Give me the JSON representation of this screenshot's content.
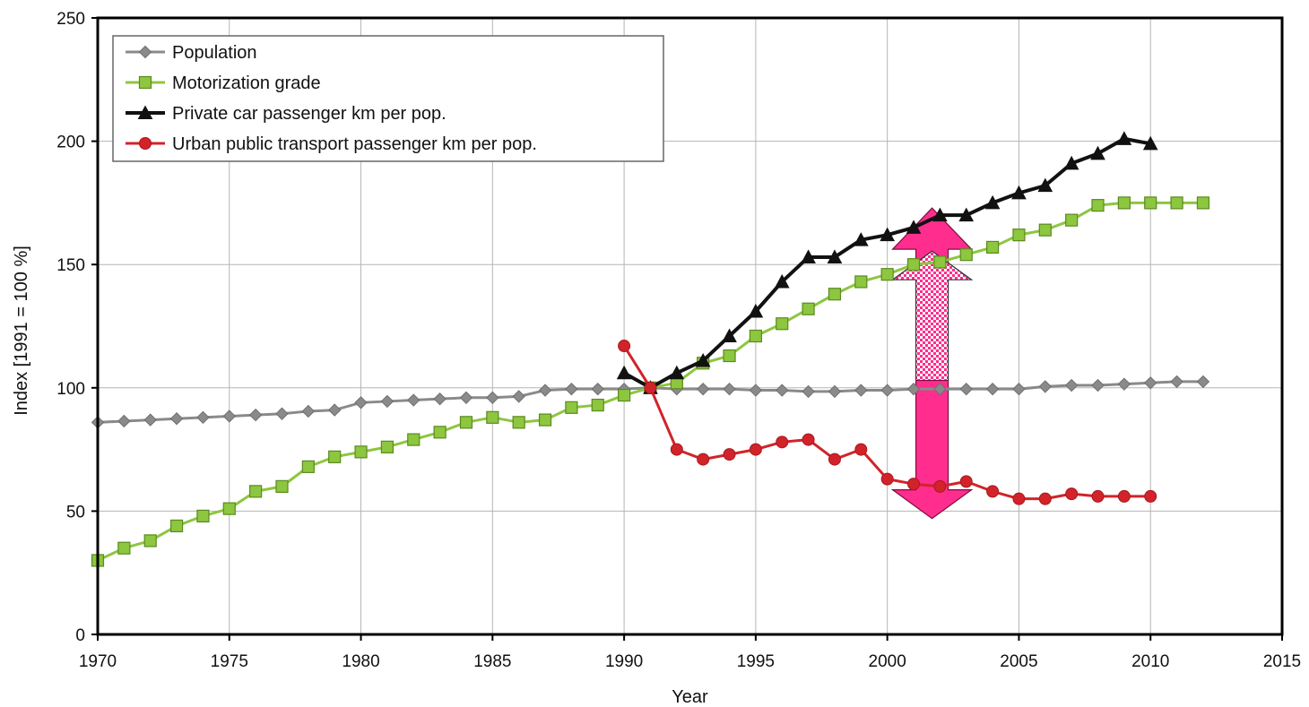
{
  "chart_data": {
    "type": "line",
    "xlabel": "Year",
    "ylabel": "Index [1991 = 100 %]",
    "xlim": [
      1970,
      2015
    ],
    "ylim": [
      0,
      250
    ],
    "x_ticks": [
      1970,
      1975,
      1980,
      1985,
      1990,
      1995,
      2000,
      2005,
      2010,
      2015
    ],
    "y_ticks": [
      0,
      50,
      100,
      150,
      200,
      250
    ],
    "grid": true,
    "legend_position": "top-left",
    "series": [
      {
        "name": "Population",
        "color": "#8a8a8a",
        "marker": "diamond",
        "x": [
          1970,
          1971,
          1972,
          1973,
          1974,
          1975,
          1976,
          1977,
          1978,
          1979,
          1980,
          1981,
          1982,
          1983,
          1984,
          1985,
          1986,
          1987,
          1988,
          1989,
          1990,
          1991,
          1992,
          1993,
          1994,
          1995,
          1996,
          1997,
          1998,
          1999,
          2000,
          2001,
          2002,
          2003,
          2004,
          2005,
          2006,
          2007,
          2008,
          2009,
          2010,
          2011,
          2012
        ],
        "values": [
          86,
          86.5,
          87,
          87.5,
          88,
          88.5,
          89,
          89.5,
          90.5,
          91,
          94,
          94.5,
          95,
          95.5,
          96,
          96,
          96.5,
          99,
          99.5,
          99.5,
          99.5,
          100,
          99.5,
          99.5,
          99.5,
          99,
          99,
          98.5,
          98.5,
          99,
          99,
          99.5,
          99.5,
          99.5,
          99.5,
          99.5,
          100.5,
          101,
          101,
          101.5,
          102,
          102.5,
          102.5
        ]
      },
      {
        "name": "Motorization grade",
        "color": "#8dc63f",
        "marker": "square",
        "x": [
          1970,
          1971,
          1972,
          1973,
          1974,
          1975,
          1976,
          1977,
          1978,
          1979,
          1980,
          1981,
          1982,
          1983,
          1984,
          1985,
          1986,
          1987,
          1988,
          1989,
          1990,
          1991,
          1992,
          1993,
          1994,
          1995,
          1996,
          1997,
          1998,
          1999,
          2000,
          2001,
          2002,
          2003,
          2004,
          2005,
          2006,
          2007,
          2008,
          2009,
          2010,
          2011,
          2012
        ],
        "values": [
          30,
          35,
          38,
          44,
          48,
          51,
          58,
          60,
          68,
          72,
          74,
          76,
          79,
          82,
          86,
          88,
          86,
          87,
          92,
          93,
          97,
          100,
          102,
          110,
          113,
          121,
          126,
          132,
          138,
          143,
          146,
          150,
          151,
          154,
          157,
          162,
          164,
          168,
          174,
          175,
          175,
          175,
          175
        ]
      },
      {
        "name": "Private car passenger km per pop.",
        "color": "#111111",
        "marker": "triangle",
        "x": [
          1990,
          1991,
          1992,
          1993,
          1994,
          1995,
          1996,
          1997,
          1998,
          1999,
          2000,
          2001,
          2002,
          2003,
          2004,
          2005,
          2006,
          2007,
          2008,
          2009,
          2010
        ],
        "values": [
          106,
          100,
          106,
          111,
          121,
          131,
          143,
          153,
          153,
          160,
          162,
          165,
          170,
          170,
          175,
          179,
          182,
          191,
          195,
          201,
          199
        ]
      },
      {
        "name": "Urban public transport passenger km per pop.",
        "color": "#d2232a",
        "marker": "circle",
        "x": [
          1990,
          1991,
          1992,
          1993,
          1994,
          1995,
          1996,
          1997,
          1998,
          1999,
          2000,
          2001,
          2002,
          2003,
          2004,
          2005,
          2006,
          2007,
          2008,
          2009,
          2010
        ],
        "values": [
          117,
          100,
          75,
          71,
          73,
          75,
          78,
          79,
          71,
          75,
          63,
          61,
          60,
          62,
          58,
          55,
          55,
          57,
          56,
          56,
          56
        ]
      }
    ],
    "annotations": [
      {
        "type": "double-arrow",
        "x": 2001.7,
        "from": 63,
        "to": 170,
        "color": "#ff2d8e"
      }
    ]
  }
}
